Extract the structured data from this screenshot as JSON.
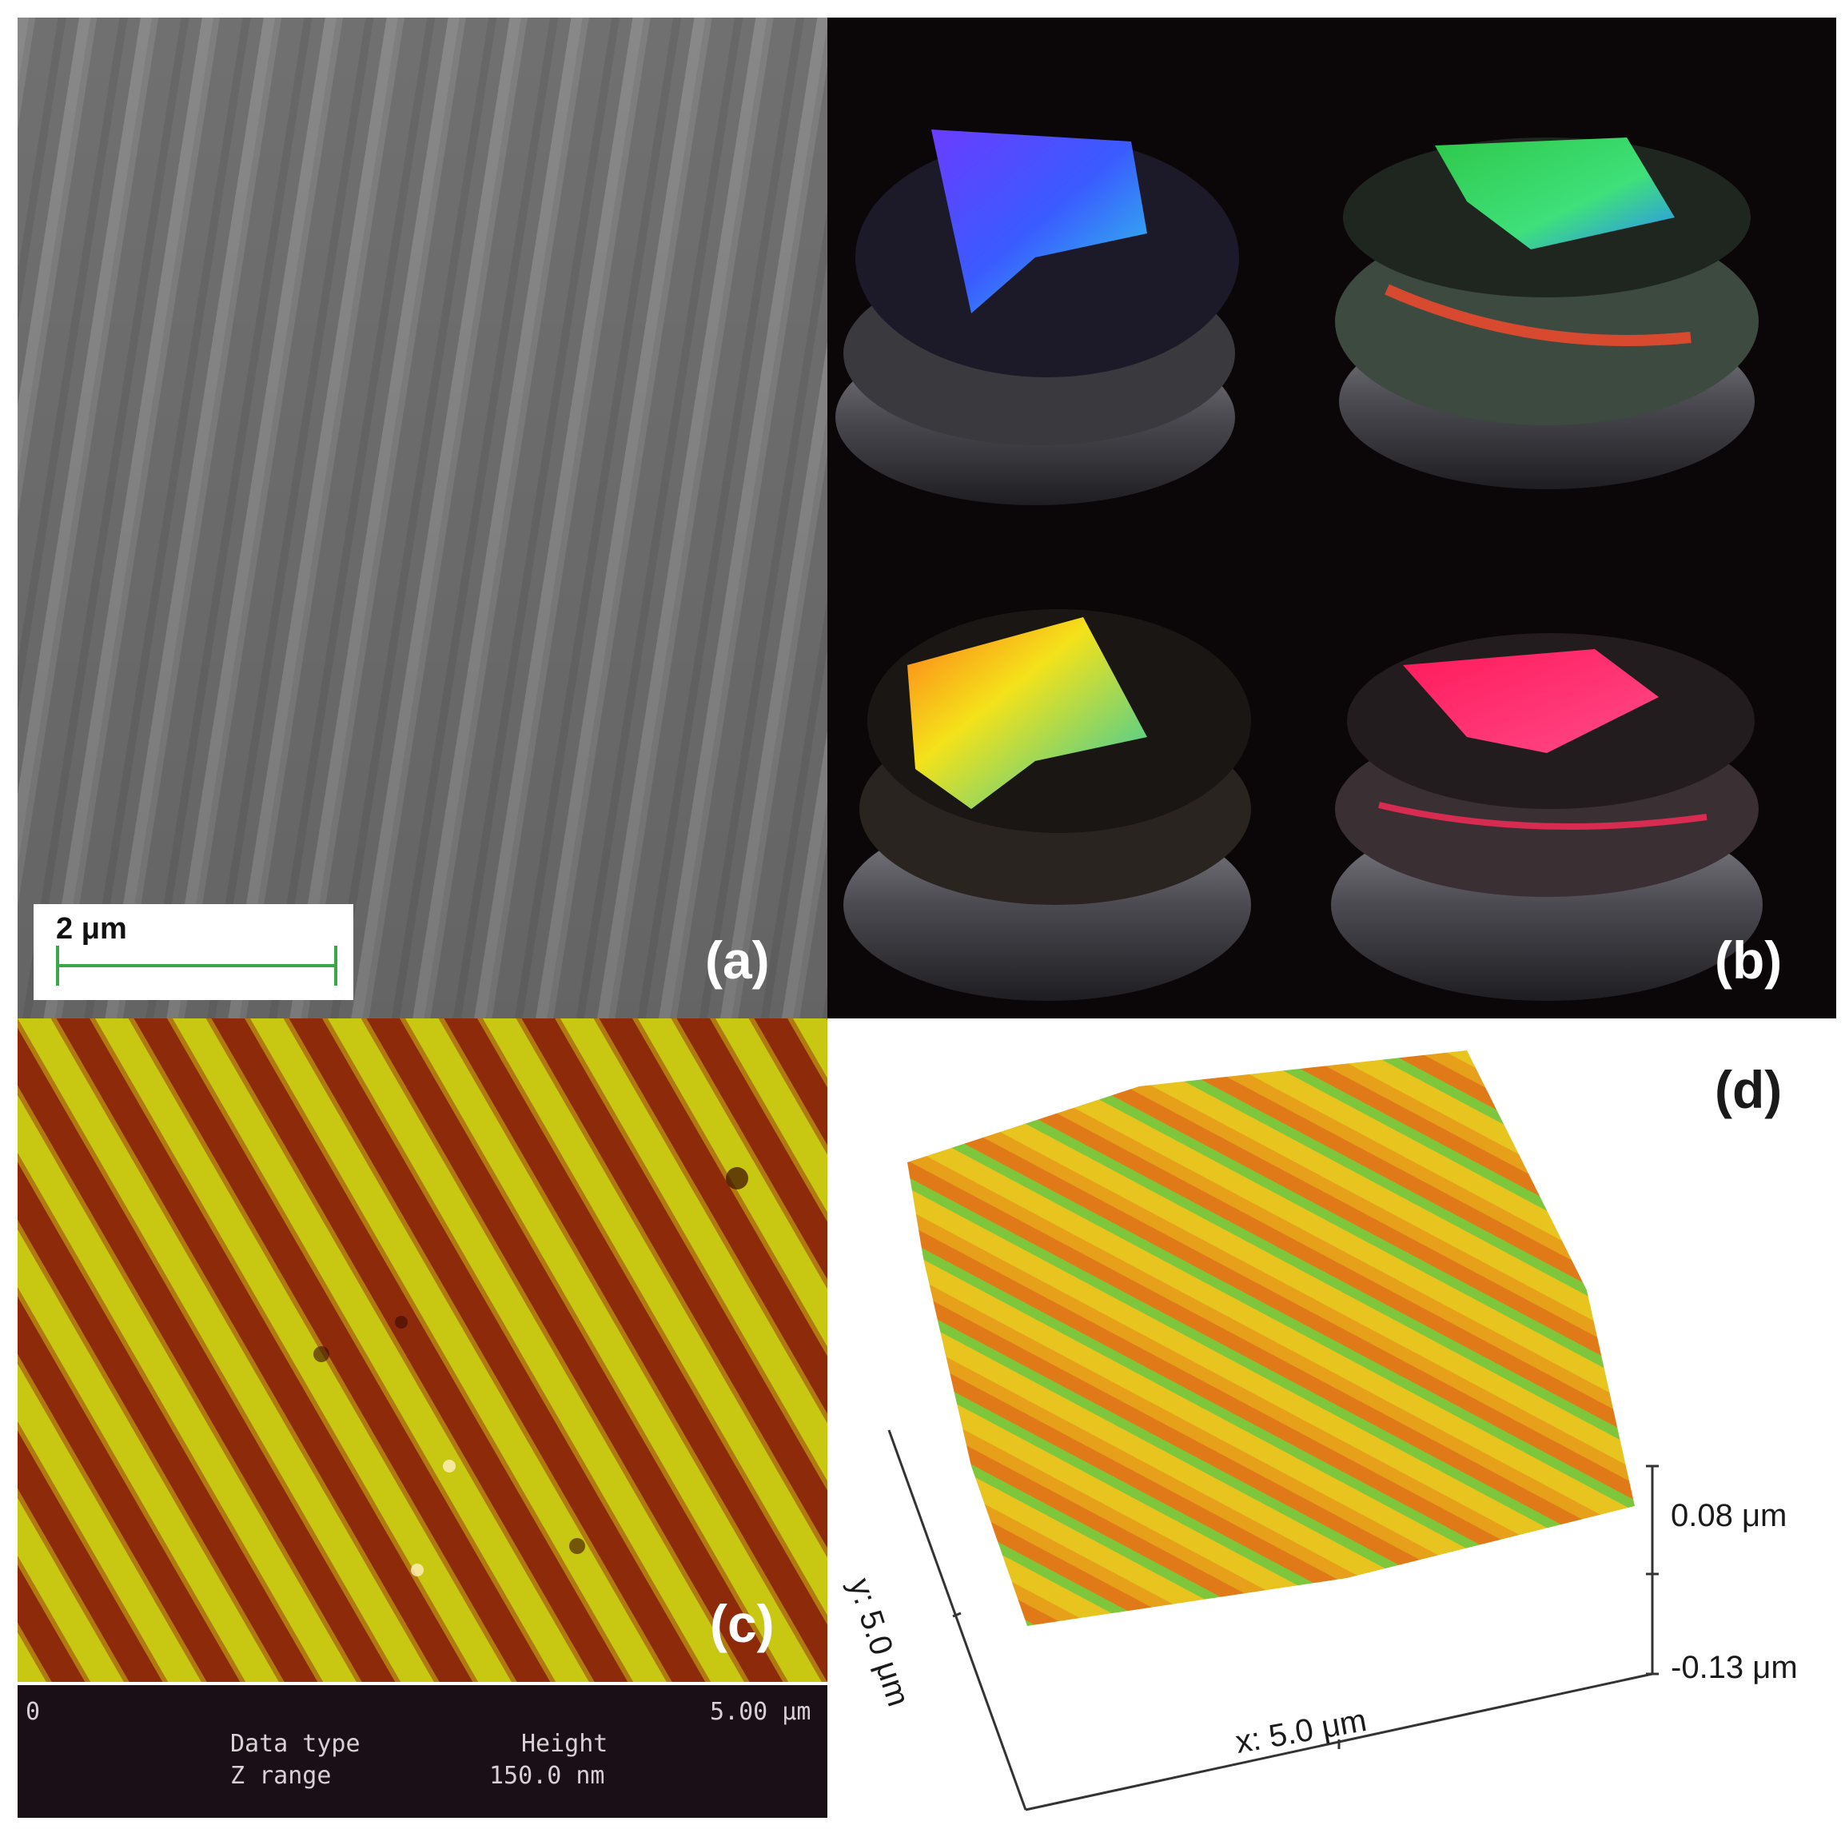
{
  "panels": {
    "a": {
      "label": "(a)",
      "scale_bar": {
        "text": "2 μm",
        "color": "#3aa84a"
      }
    },
    "b": {
      "label": "(b)"
    },
    "c": {
      "label": "(c)",
      "axis_start": "0",
      "axis_end": "5.00 μm",
      "data_type_label": "Data type",
      "data_type_value": "Height",
      "z_range_label": "Z range",
      "z_range_value": "150.0 nm"
    },
    "d": {
      "label": "(d)",
      "x_axis": "x: 5.0 μm",
      "y_axis": "y: 5.0 μm",
      "z_top": "0.08 μm",
      "z_bottom": "-0.13 μm"
    }
  },
  "colors": {
    "sem_gray": "#7d7d7d",
    "afm_dark": "#8c2a0a",
    "afm_light": "#c8c812",
    "surface_high": "#e4c21c",
    "surface_low": "#e05a18"
  }
}
